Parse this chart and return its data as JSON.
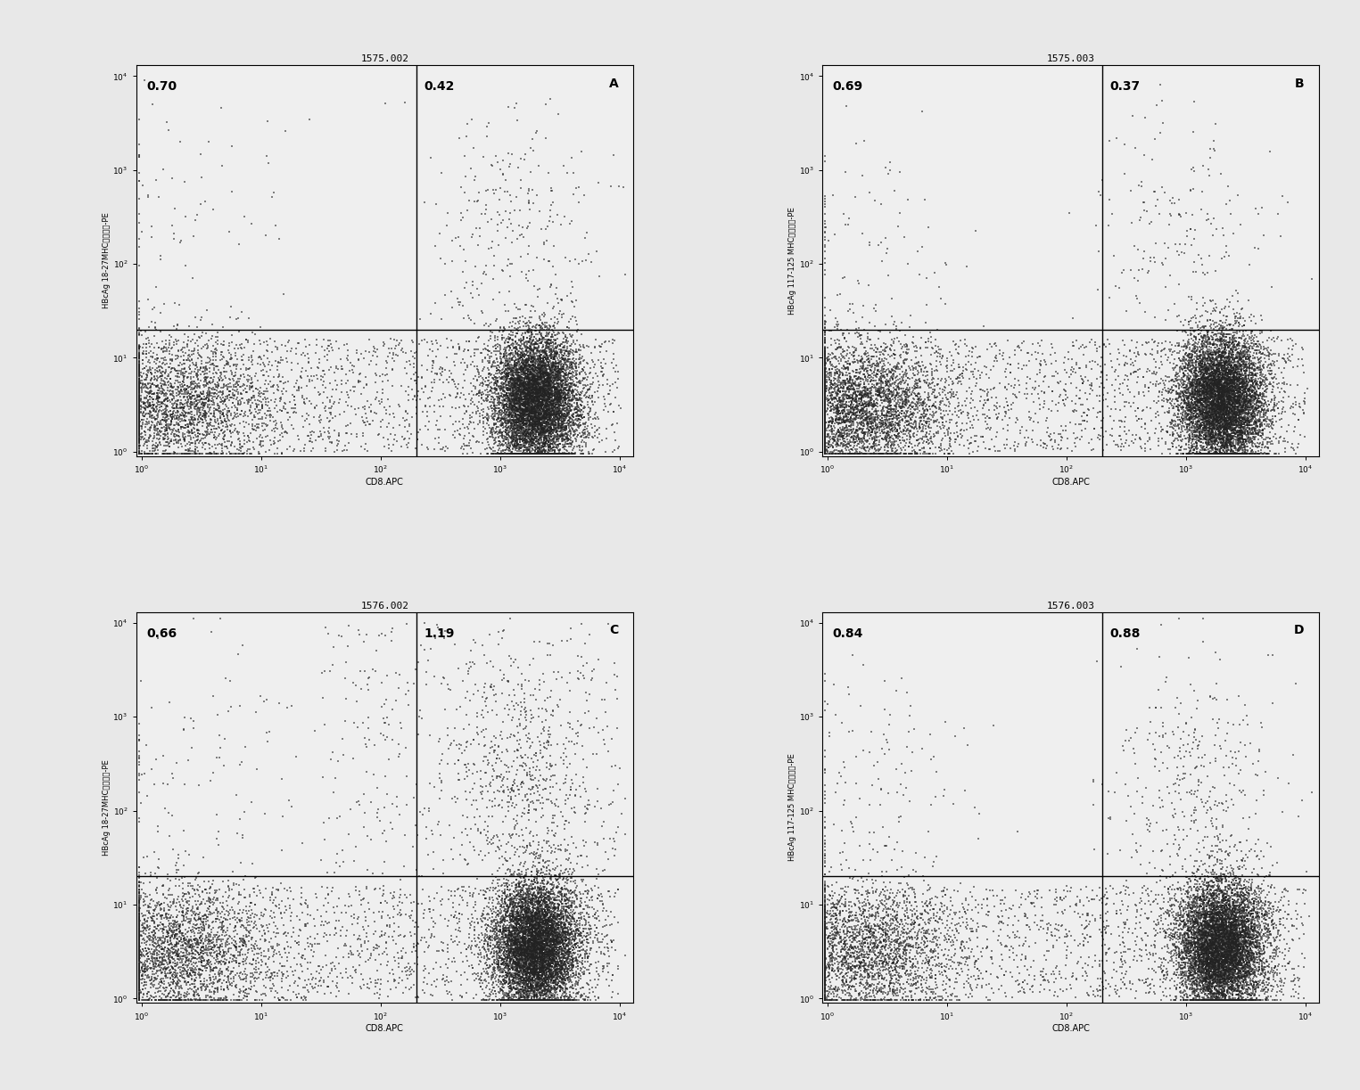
{
  "panels": [
    {
      "title": "1575.002",
      "label": "A",
      "ylabel": "HBcAg 18-27MHC肃五聚体-PE",
      "xlabel": "CD8.APC",
      "ul_value": "0.70",
      "ur_value": "0.42",
      "cluster_type": "A"
    },
    {
      "title": "1575.003",
      "label": "B",
      "ylabel": "HBcAg 117-125 MHC肃五聚体-PE",
      "xlabel": "CD8.APC",
      "ul_value": "0.69",
      "ur_value": "0.37",
      "cluster_type": "B"
    },
    {
      "title": "1576.002",
      "label": "C",
      "ylabel": "HBcAg 18-27MHC肃五聚体-PE",
      "xlabel": "CD8.APC",
      "ul_value": "0.66",
      "ur_value": "1.19",
      "cluster_type": "C"
    },
    {
      "title": "1576.003",
      "label": "D",
      "ylabel": "HBcAg 117-125 MHC肃五聚体-PE",
      "xlabel": "CD8.APC",
      "ul_value": "0.84",
      "ur_value": "0.88",
      "cluster_type": "D"
    }
  ],
  "xlim_log": [
    -0.05,
    4.1
  ],
  "ylim_log": [
    -0.05,
    4.1
  ],
  "gate_x_log": 2.3,
  "gate_y_log": 1.3,
  "bg_color": "#f0f0f0",
  "plot_bg": "#f0f0f0",
  "dot_color": "#111111",
  "line_color": "#000000",
  "text_color": "#000000",
  "title_fontsize": 8,
  "label_fontsize": 7,
  "tick_fontsize": 6.5,
  "value_fontsize": 10,
  "letter_fontsize": 10,
  "ylabel_fontsize": 6
}
